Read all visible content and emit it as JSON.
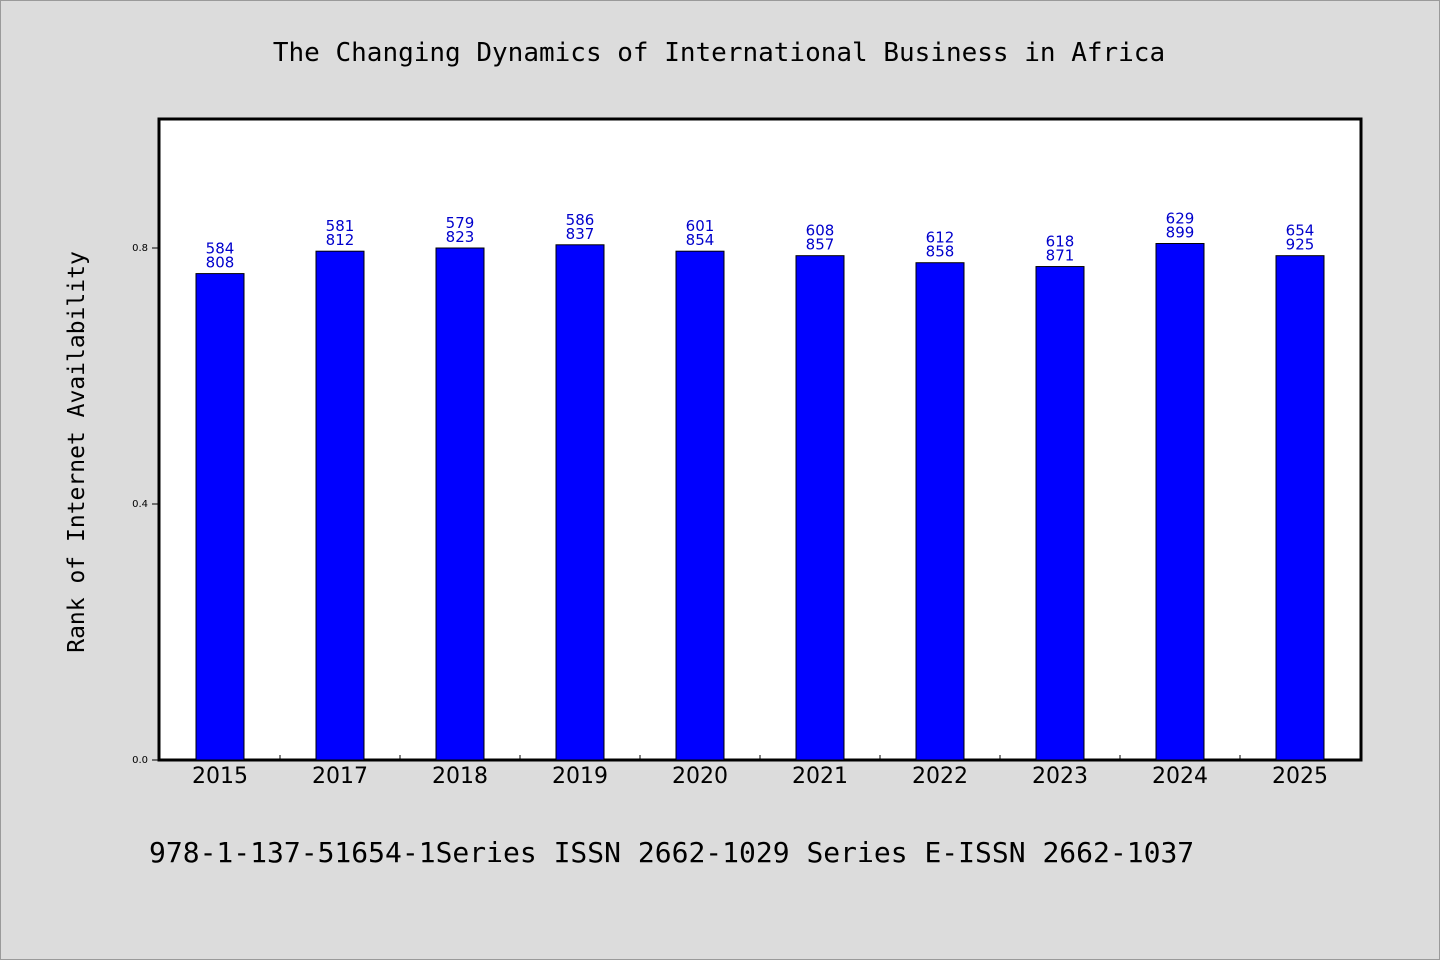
{
  "chart_data": {
    "type": "bar",
    "title": "The Changing Dynamics of International Business in Africa",
    "xlabel": "",
    "ylabel": "Rank of Internet Availability",
    "categories": [
      "2015",
      "2017",
      "2018",
      "2019",
      "2020",
      "2021",
      "2022",
      "2023",
      "2024",
      "2025"
    ],
    "values": [
      0.76,
      0.795,
      0.8,
      0.805,
      0.795,
      0.788,
      0.777,
      0.771,
      0.807,
      0.788
    ],
    "data_labels": [
      [
        "584",
        "808"
      ],
      [
        "581",
        "812"
      ],
      [
        "579",
        "823"
      ],
      [
        "586",
        "837"
      ],
      [
        "601",
        "854"
      ],
      [
        "608",
        "857"
      ],
      [
        "612",
        "858"
      ],
      [
        "618",
        "871"
      ],
      [
        "629",
        "899"
      ],
      [
        "654",
        "925"
      ]
    ],
    "yticks": [
      {
        "value": 0.0,
        "label": "0.0"
      },
      {
        "value": 0.4,
        "label": "0.4"
      },
      {
        "value": 0.8,
        "label": "0.8"
      }
    ],
    "ylim": [
      0,
      1.0
    ],
    "grid": false,
    "bar_color": "#0000ff",
    "label_color": "#0000cc"
  },
  "footer": "978-1-137-51654-1Series ISSN 2662-1029 Series E-ISSN 2662-1037"
}
